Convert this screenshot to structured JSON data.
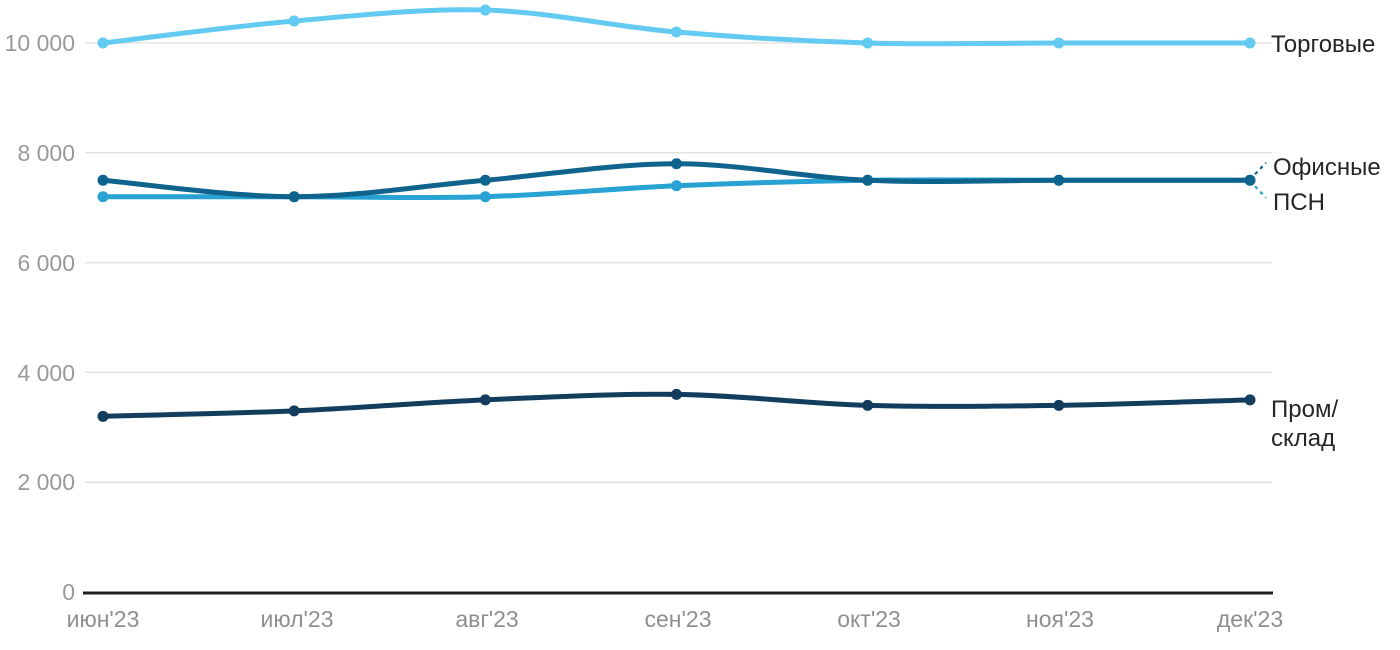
{
  "chart_data": {
    "type": "line",
    "title": "",
    "categories": [
      "июн'23",
      "июл'23",
      "авг'23",
      "сен'23",
      "окт'23",
      "ноя'23",
      "дек'23"
    ],
    "series": [
      {
        "name": "Торговые",
        "color": "#63caf2",
        "values": [
          10000,
          10400,
          10600,
          10200,
          10000,
          10000,
          10000
        ],
        "leader": "none"
      },
      {
        "name": "Офисные",
        "color": "#0f648d",
        "values": [
          7500,
          7200,
          7500,
          7800,
          7500,
          7500,
          7500
        ],
        "leader": "up"
      },
      {
        "name": "ПСН",
        "color": "#27a2d2",
        "values": [
          7200,
          7200,
          7200,
          7400,
          7500,
          7500,
          7500
        ],
        "leader": "down"
      },
      {
        "name": "Пром/склад",
        "color": "#133d5c",
        "values": [
          3200,
          3300,
          3500,
          3600,
          3400,
          3400,
          3500
        ],
        "leader": "none"
      }
    ],
    "y_axis": {
      "ticks": [
        "10 000",
        "8 000",
        "6 000",
        "4 000",
        "2 000",
        "0"
      ],
      "tick_values": [
        10000,
        8000,
        6000,
        4000,
        2000,
        0
      ],
      "min": 0,
      "max": 10000
    },
    "xlabel": "",
    "ylabel": "",
    "grid": true,
    "legend_position": "right-end-labels"
  },
  "colors": {
    "axis_line": "#1f1f1f",
    "grid_line": "#e3e3e3",
    "y_tick_text": "#999999",
    "x_tick_text": "#8f8f8f",
    "label_text": "#262626"
  }
}
